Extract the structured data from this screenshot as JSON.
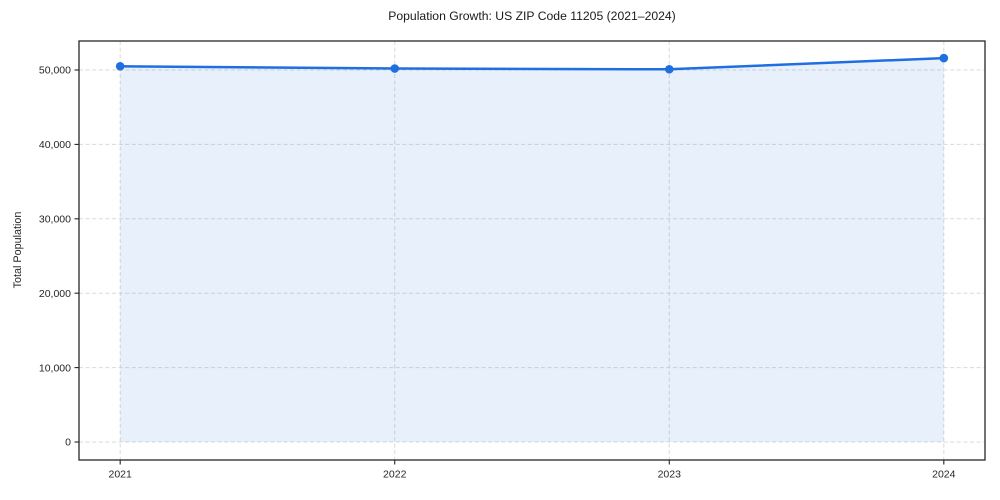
{
  "chart_data": {
    "type": "area",
    "title": "Population Growth: US ZIP Code 11205 (2021–2024)",
    "xlabel": "",
    "ylabel": "Total Population",
    "x": [
      2021,
      2022,
      2023,
      2024
    ],
    "values": [
      50500,
      50200,
      50100,
      51600
    ],
    "xticks": [
      2021,
      2022,
      2023,
      2024
    ],
    "xtick_labels": [
      "2021",
      "2022",
      "2023",
      "2024"
    ],
    "yticks": [
      0,
      10000,
      20000,
      30000,
      40000,
      50000
    ],
    "ytick_labels": [
      "0",
      "10,000",
      "20,000",
      "30,000",
      "40,000",
      "50,000"
    ],
    "xlim": [
      2020.85,
      2024.15
    ],
    "ylim": [
      -2419,
      53898
    ],
    "grid": true,
    "legend": "none",
    "line_color": "#1f6fe0",
    "fill_color": "rgba(31,111,224,0.10)",
    "frame_color": "#262626",
    "marker": "circle"
  }
}
